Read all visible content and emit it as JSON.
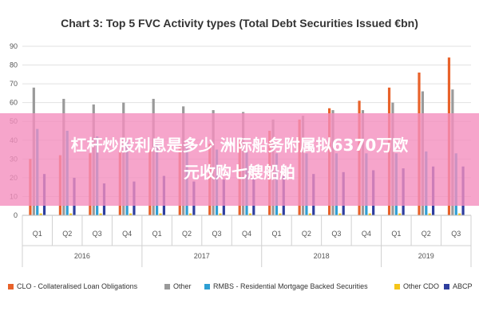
{
  "banner": {
    "line1": "杠杆炒股利息是多少 洲际船务附属拟6370万欧",
    "line2": "元收购七艘船舶"
  },
  "chart_data": {
    "type": "bar",
    "title": "Chart 3: Top 5 FVC Activity types (Total Debt Securities Issued €bn)",
    "ylim": [
      0,
      90
    ],
    "yticks": [
      0,
      10,
      20,
      30,
      40,
      50,
      60,
      70,
      80,
      90
    ],
    "grid": true,
    "legend_position": "bottom",
    "categories": [
      "Q1",
      "Q2",
      "Q3",
      "Q4",
      "Q1",
      "Q2",
      "Q3",
      "Q4",
      "Q1",
      "Q2",
      "Q3",
      "Q4",
      "Q1",
      "Q2",
      "Q3"
    ],
    "groups": [
      {
        "label": "2016",
        "span": 4
      },
      {
        "label": "2017",
        "span": 4
      },
      {
        "label": "2018",
        "span": 4
      },
      {
        "label": "2019",
        "span": 3
      }
    ],
    "series": [
      {
        "name": "CLO - Collateralised Loan Obligations",
        "color": "#E8622A",
        "values": [
          30,
          32,
          33,
          34,
          35,
          37,
          38,
          40,
          45,
          51,
          57,
          61,
          68,
          76,
          84
        ]
      },
      {
        "name": "Other",
        "color": "#9A9A9A",
        "values": [
          68,
          62,
          59,
          60,
          62,
          58,
          56,
          55,
          51,
          53,
          56,
          56,
          60,
          66,
          67
        ]
      },
      {
        "name": "RMBS - Residential Mortgage Backed Securities",
        "color": "#2E9FD3",
        "values": [
          46,
          45,
          42,
          40,
          38,
          37,
          35,
          34,
          33,
          33,
          33,
          33,
          33,
          34,
          33
        ]
      },
      {
        "name": "Other CDO",
        "color": "#F5C518",
        "values": [
          1,
          1,
          1,
          1,
          1,
          1,
          1,
          1,
          1,
          1,
          1,
          1,
          1,
          1,
          1
        ]
      },
      {
        "name": "ABCP",
        "color": "#2E3E9E",
        "values": [
          22,
          20,
          17,
          18,
          21,
          18,
          19,
          20,
          21,
          22,
          23,
          24,
          25,
          26,
          26
        ]
      }
    ]
  }
}
